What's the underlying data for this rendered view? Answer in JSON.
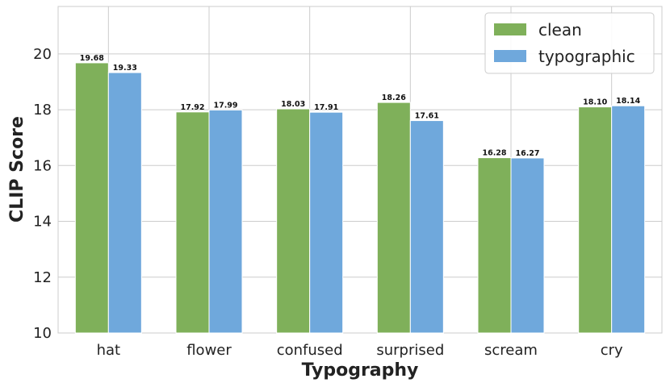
{
  "chart_data": {
    "type": "bar",
    "title": "",
    "xlabel": "Typography",
    "ylabel": "CLIP Score",
    "categories": [
      "hat",
      "flower",
      "confused",
      "surprised",
      "scream",
      "cry"
    ],
    "series": [
      {
        "name": "clean",
        "color": "#7fb05a",
        "values": [
          19.68,
          17.92,
          18.03,
          18.26,
          16.28,
          18.1
        ],
        "labels": [
          "19.68",
          "17.92",
          "18.03",
          "18.26",
          "16.28",
          "18.10"
        ]
      },
      {
        "name": "typographic",
        "color": "#6fa8dc",
        "values": [
          19.33,
          17.99,
          17.91,
          17.61,
          16.27,
          18.14
        ],
        "labels": [
          "19.33",
          "17.99",
          "17.91",
          "17.61",
          "16.27",
          "18.14"
        ]
      }
    ],
    "ylim": [
      10,
      21.7
    ],
    "yticks": [
      "10",
      "12",
      "14",
      "16",
      "18",
      "20"
    ],
    "grid": true,
    "legend_position": "top-right"
  }
}
